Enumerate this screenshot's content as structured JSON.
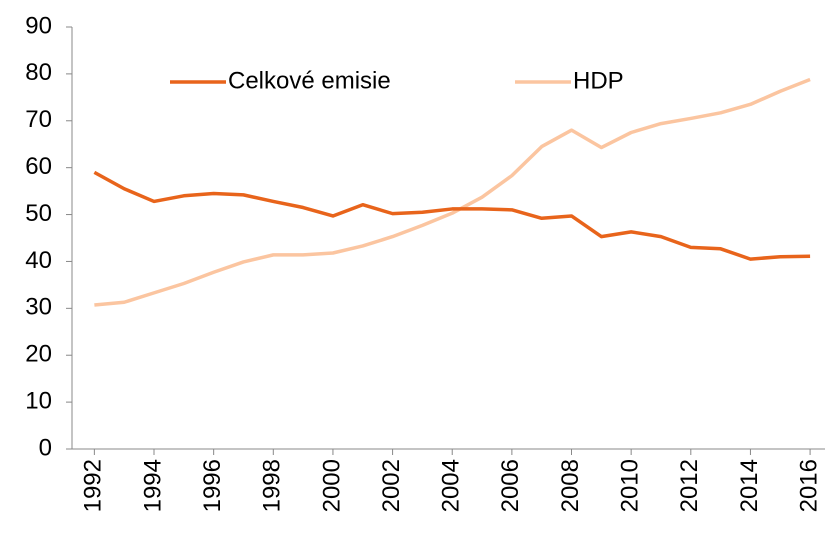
{
  "chart_data": {
    "type": "line",
    "x": [
      1992,
      1993,
      1994,
      1995,
      1996,
      1997,
      1998,
      1999,
      2000,
      2001,
      2002,
      2003,
      2004,
      2005,
      2006,
      2007,
      2008,
      2009,
      2010,
      2011,
      2012,
      2013,
      2014,
      2015,
      2016
    ],
    "series": [
      {
        "name": "Celkové emisie",
        "color": "#e8641b",
        "values": [
          59,
          55.5,
          52.8,
          54,
          54.5,
          54.2,
          52.8,
          51.5,
          49.7,
          52.1,
          50.2,
          50.5,
          51.2,
          51.2,
          51,
          49.2,
          49.7,
          45.3,
          46.3,
          45.3,
          43,
          42.7,
          40.5,
          41,
          41.1
        ]
      },
      {
        "name": "HDP",
        "color": "#fbc5a0",
        "values": [
          30.7,
          31.3,
          33.3,
          35.3,
          37.7,
          39.9,
          41.4,
          41.4,
          41.8,
          43.3,
          45.3,
          47.7,
          50.3,
          53.7,
          58.3,
          64.5,
          68,
          64.3,
          67.5,
          69.4,
          70.5,
          71.7,
          73.5,
          76.3,
          78.8
        ]
      }
    ],
    "xlim": [
      1991.25,
      2016.5
    ],
    "xticks": [
      1992,
      1994,
      1996,
      1998,
      2000,
      2002,
      2004,
      2006,
      2008,
      2010,
      2012,
      2014,
      2016
    ],
    "ylim": [
      0,
      90
    ],
    "yticks": [
      0,
      10,
      20,
      30,
      40,
      50,
      60,
      70,
      80,
      90
    ],
    "legend": "top"
  }
}
